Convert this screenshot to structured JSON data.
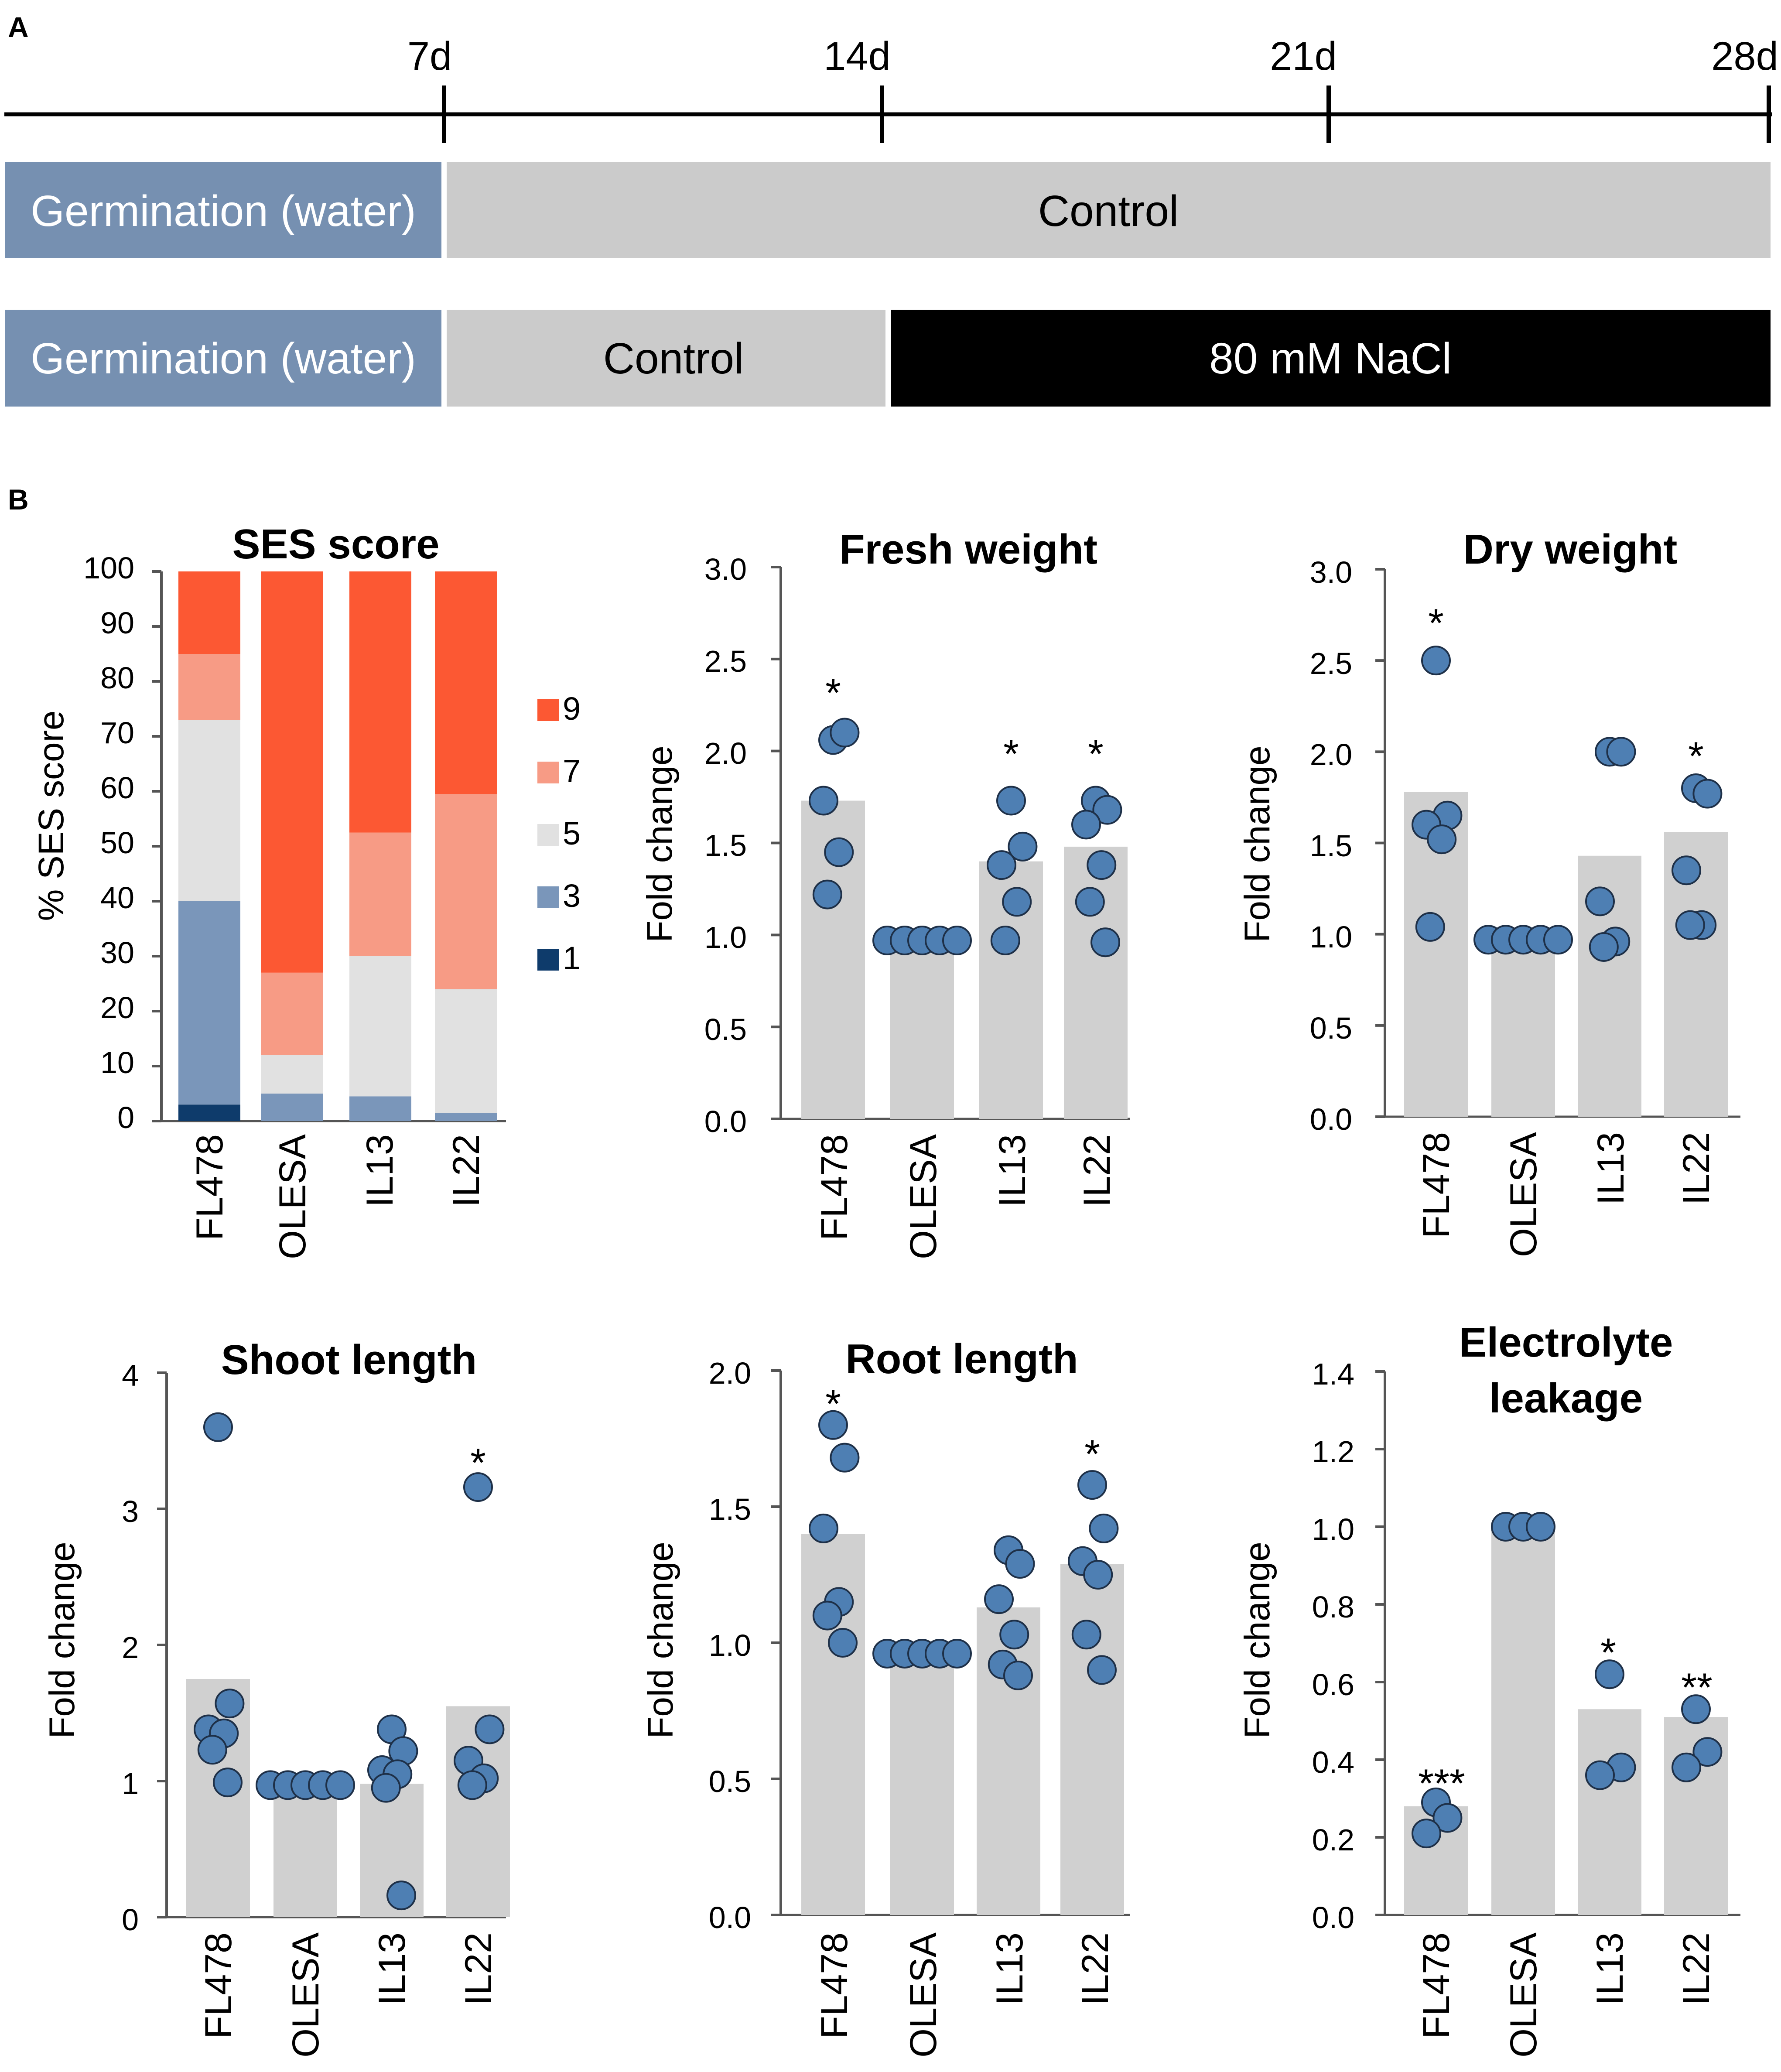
{
  "panelA": {
    "letter": "A",
    "ticks": [
      "7d",
      "14d",
      "21d",
      "28d"
    ],
    "rows": [
      [
        {
          "label": "Germination  (water)",
          "kind": "germ"
        },
        {
          "label": "Control",
          "kind": "ctrl"
        }
      ],
      [
        {
          "label": "Germination (water)",
          "kind": "germ"
        },
        {
          "label": "Control",
          "kind": "ctrl"
        },
        {
          "label": "80 mM NaCl",
          "kind": "salt"
        }
      ]
    ],
    "colors": {
      "germ": "#7690b1",
      "ctrl": "#cbcbcb",
      "salt": "#000000",
      "germText": "#ffffff",
      "ctrlText": "#000000",
      "saltText": "#ffffff"
    }
  },
  "panelB": {
    "letter": "B"
  },
  "colors": {
    "bar": "#d0d0d0",
    "point": "#4e7fb3",
    "pointStroke": "#1e3048",
    "axis": "#555555"
  },
  "chart_data": [
    {
      "id": "ses",
      "type": "stacked-bar",
      "title": "SES score",
      "ylabel": "% SES score",
      "ylim": [
        0,
        100
      ],
      "yticks": [
        "0",
        "10",
        "20",
        "30",
        "40",
        "50",
        "60",
        "70",
        "80",
        "90",
        "100"
      ],
      "categories": [
        "FL478",
        "OLESA",
        "IL13",
        "IL22"
      ],
      "series": [
        {
          "name": "1",
          "color": "#0e3b6b",
          "values": [
            3,
            0,
            0,
            0
          ]
        },
        {
          "name": "3",
          "color": "#7a96ba",
          "values": [
            37,
            5,
            4.5,
            1.5
          ]
        },
        {
          "name": "5",
          "color": "#e1e1e1",
          "values": [
            33,
            7,
            25.5,
            22.5
          ]
        },
        {
          "name": "7",
          "color": "#f79b85",
          "values": [
            12,
            15,
            22.5,
            35.5
          ]
        },
        {
          "name": "9",
          "color": "#fc5833",
          "values": [
            15,
            73,
            47.5,
            40.5
          ]
        }
      ],
      "legend": [
        "9",
        "7",
        "5",
        "3",
        "1"
      ]
    },
    {
      "id": "fresh",
      "type": "bar-dot",
      "title": "Fresh weight",
      "ylabel": "Fold change",
      "ylim": [
        0,
        3
      ],
      "yticks": [
        "0.0",
        "0.5",
        "1.0",
        "1.5",
        "2.0",
        "2.5",
        "3.0"
      ],
      "categories": [
        "FL478",
        "OLESA",
        "IL13",
        "IL22"
      ],
      "values": [
        1.73,
        0.97,
        1.4,
        1.48
      ],
      "points": [
        [
          2.06,
          2.1,
          1.73,
          1.45,
          1.22
        ],
        [
          0.97,
          0.97,
          0.97,
          0.97,
          0.97
        ],
        [
          1.73,
          1.48,
          1.38,
          1.18,
          0.97
        ],
        [
          1.73,
          1.68,
          1.6,
          1.38,
          1.18,
          0.96
        ]
      ],
      "sig": [
        "*",
        "",
        "*",
        "*"
      ]
    },
    {
      "id": "dry",
      "type": "bar-dot",
      "title": "Dry weight",
      "ylabel": "Fold change",
      "ylim": [
        0,
        3
      ],
      "yticks": [
        "0.0",
        "0.5",
        "1.0",
        "1.5",
        "2.0",
        "2.5",
        "3.0"
      ],
      "categories": [
        "FL478",
        "OLESA",
        "IL13",
        "IL22"
      ],
      "values": [
        1.78,
        0.97,
        1.43,
        1.56
      ],
      "points": [
        [
          2.5,
          1.65,
          1.6,
          1.52,
          1.04
        ],
        [
          0.97,
          0.97,
          0.97,
          0.97,
          0.97
        ],
        [
          2.0,
          2.0,
          1.18,
          0.96,
          0.93
        ],
        [
          1.8,
          1.77,
          1.35,
          1.05,
          1.05
        ]
      ],
      "sig": [
        "*",
        "",
        "",
        "*"
      ]
    },
    {
      "id": "shoot",
      "type": "bar-dot",
      "title": "Shoot length",
      "ylabel": "Fold change",
      "ylim": [
        0,
        4
      ],
      "yticks": [
        "0",
        "1",
        "2",
        "3",
        "4"
      ],
      "categories": [
        "FL478",
        "OLESA",
        "IL13",
        "IL22"
      ],
      "values": [
        1.75,
        0.97,
        0.98,
        1.55
      ],
      "points": [
        [
          3.6,
          1.57,
          1.38,
          1.35,
          1.23,
          0.99
        ],
        [
          0.97,
          0.97,
          0.97,
          0.97,
          0.97
        ],
        [
          1.38,
          1.22,
          1.08,
          1.05,
          0.95,
          0.16
        ],
        [
          3.16,
          1.38,
          1.15,
          1.02,
          0.97
        ]
      ],
      "sig": [
        "",
        "",
        "",
        "*"
      ]
    },
    {
      "id": "root",
      "type": "bar-dot",
      "title": "Root length",
      "ylabel": "Fold change",
      "ylim": [
        0,
        2
      ],
      "yticks": [
        "0.0",
        "0.5",
        "1.0",
        "1.5",
        "2.0"
      ],
      "categories": [
        "FL478",
        "OLESA",
        "IL13",
        "IL22"
      ],
      "values": [
        1.4,
        0.96,
        1.13,
        1.29
      ],
      "points": [
        [
          1.8,
          1.68,
          1.42,
          1.15,
          1.1,
          1.0
        ],
        [
          0.96,
          0.96,
          0.96,
          0.96,
          0.96
        ],
        [
          1.34,
          1.29,
          1.16,
          1.03,
          0.92,
          0.88
        ],
        [
          1.58,
          1.42,
          1.3,
          1.25,
          1.03,
          0.9
        ]
      ],
      "sig": [
        "*",
        "",
        "",
        "*"
      ]
    },
    {
      "id": "ec",
      "type": "bar-dot",
      "title": [
        "Electrolyte",
        "leakage"
      ],
      "ylabel": "Fold change",
      "ylim": [
        0,
        1.4
      ],
      "yticks": [
        "0.0",
        "0.2",
        "0.4",
        "0.6",
        "0.8",
        "1.0",
        "1.2",
        "1.4"
      ],
      "categories": [
        "FL478",
        "OLESA",
        "IL13",
        "IL22"
      ],
      "values": [
        0.28,
        1.0,
        0.53,
        0.51
      ],
      "points": [
        [
          0.29,
          0.25,
          0.21
        ],
        [
          1.0,
          1.0,
          1.0
        ],
        [
          0.62,
          0.38,
          0.36
        ],
        [
          0.53,
          0.42,
          0.38
        ]
      ],
      "sig": [
        "***",
        "",
        "*",
        "**"
      ]
    }
  ]
}
